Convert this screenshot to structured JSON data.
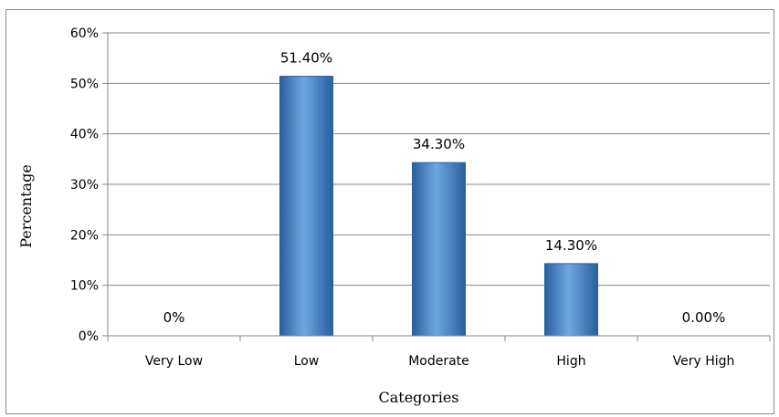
{
  "chart_data": {
    "type": "bar",
    "categories": [
      "Very Low",
      "Low",
      "Moderate",
      "High",
      "Very High"
    ],
    "values": [
      0,
      51.4,
      34.3,
      14.3,
      0
    ],
    "data_labels": [
      "0%",
      "51.40%",
      "34.30%",
      "14.30%",
      "0.00%"
    ],
    "title": "",
    "xlabel": "Categories",
    "ylabel": "Percentage",
    "ylim": [
      0,
      60
    ],
    "yticks": [
      0,
      10,
      20,
      30,
      40,
      50,
      60
    ],
    "ytick_labels": [
      "0%",
      "10%",
      "20%",
      "30%",
      "40%",
      "50%",
      "60%"
    ],
    "grid": true,
    "legend": "none",
    "colors": {
      "bar_fill": "#3a7cc7",
      "bar_highlight": "#6ea6e4",
      "bar_edge": "#2a5f9e",
      "grid": "#868686",
      "axis": "#868686",
      "frame_border": "#8c8c8c"
    }
  }
}
